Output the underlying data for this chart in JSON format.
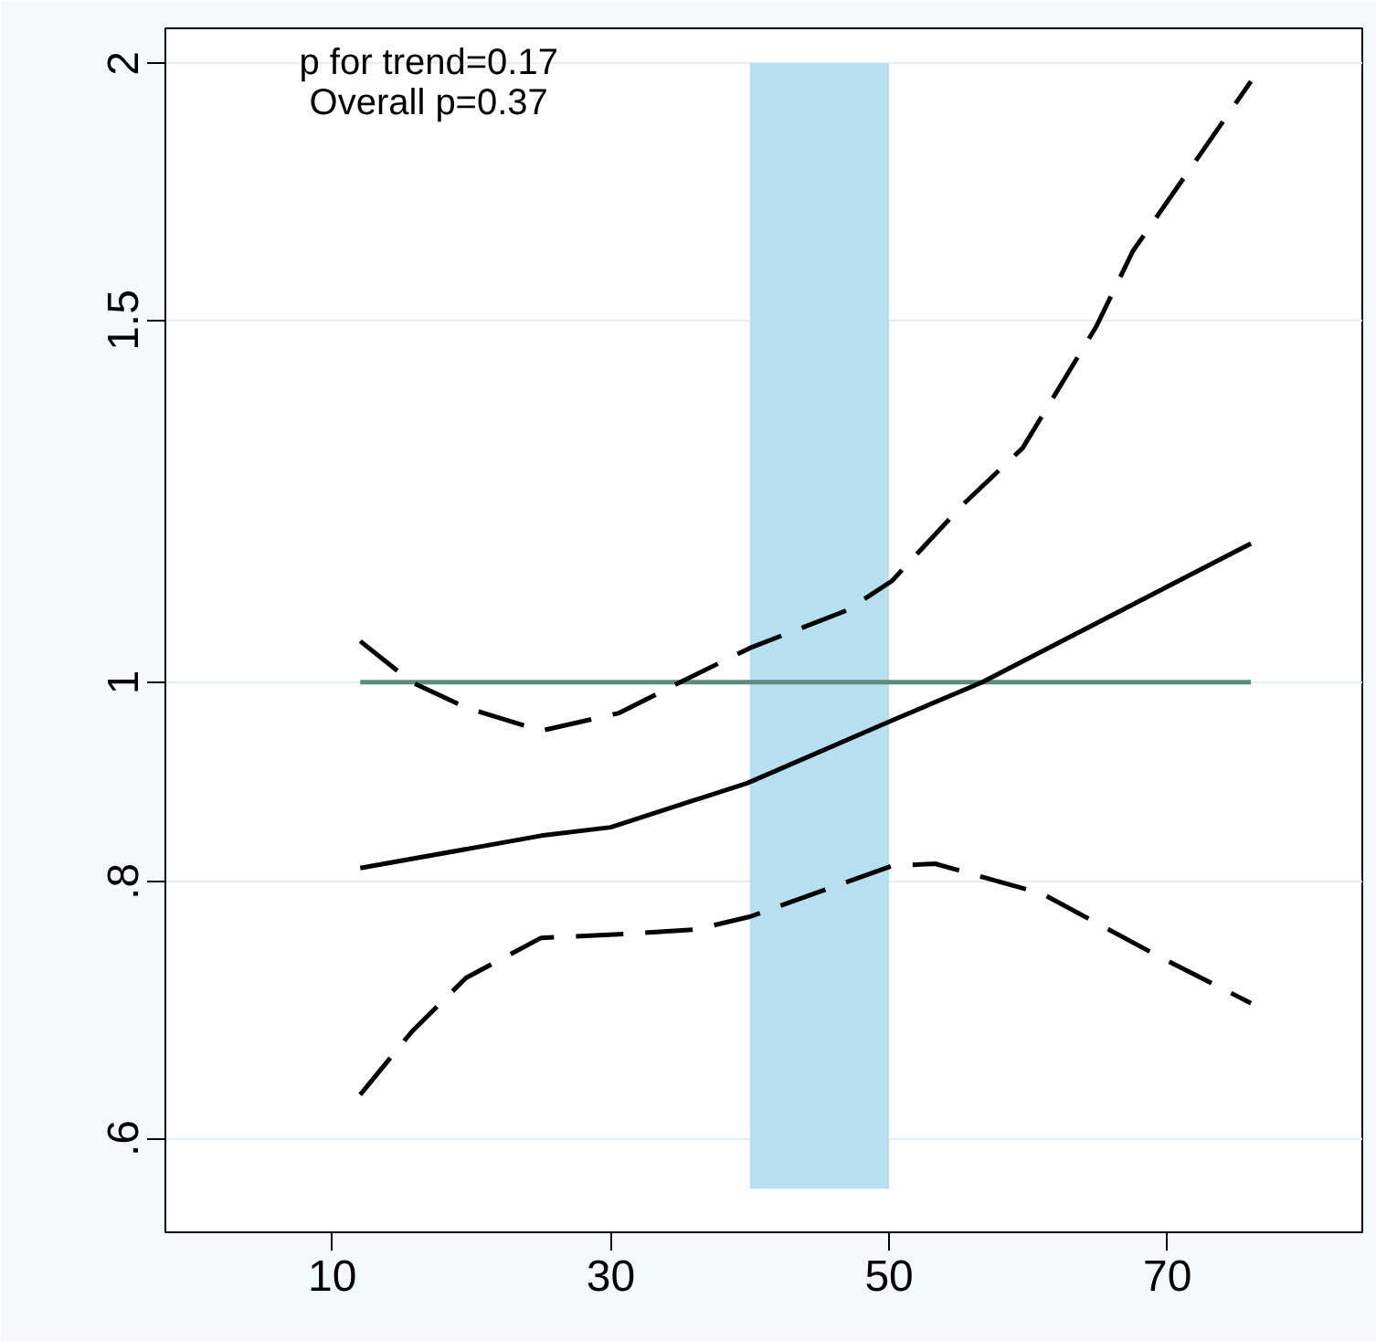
{
  "chart_data": {
    "type": "line",
    "log": "y",
    "xlim": [
      -2,
      84
    ],
    "ylim": [
      0.54,
      2.08
    ],
    "xticks": [
      10,
      30,
      50,
      70
    ],
    "yticks": [
      {
        "value": 0.6,
        "label": ".6"
      },
      {
        "value": 0.8,
        "label": ".8"
      },
      1,
      1.5,
      2
    ],
    "grid": "y",
    "annotations": [
      "p for trend=0.17",
      "Overall p=0.37"
    ],
    "bands": [
      {
        "axis": "x",
        "from": 40,
        "to": 50,
        "color": "#b7dff0"
      }
    ],
    "series": [
      {
        "color": "#5e8c7c",
        "line_style": "solid",
        "x": [
          12,
          76
        ],
        "values": [
          1,
          1
        ]
      },
      {
        "color": "#000000",
        "line_style": "dashed",
        "x": [
          12,
          15.7,
          19.6,
          25,
          30.6,
          35,
          40,
          47,
          50.2,
          55.3,
          59.6,
          64.9,
          67.5,
          76
        ],
        "values": [
          1.047,
          1.0,
          0.972,
          0.947,
          0.966,
          1.0,
          1.039,
          1.084,
          1.12,
          1.22,
          1.3,
          1.49,
          1.62,
          1.96
        ]
      },
      {
        "color": "#000000",
        "line_style": "dashed",
        "x": [
          12,
          15.7,
          19.6,
          25,
          30.6,
          36.1,
          40,
          50.2,
          53.3,
          61,
          69.3,
          76
        ],
        "values": [
          0.63,
          0.676,
          0.718,
          0.751,
          0.754,
          0.758,
          0.769,
          0.814,
          0.816,
          0.789,
          0.736,
          0.698
        ]
      },
      {
        "color": "#000000",
        "line_style": "solid",
        "x": [
          12,
          25,
          30,
          39.8,
          50.2,
          56.7,
          76
        ],
        "values": [
          0.812,
          0.842,
          0.85,
          0.893,
          0.958,
          1.0,
          1.168
        ]
      }
    ]
  }
}
